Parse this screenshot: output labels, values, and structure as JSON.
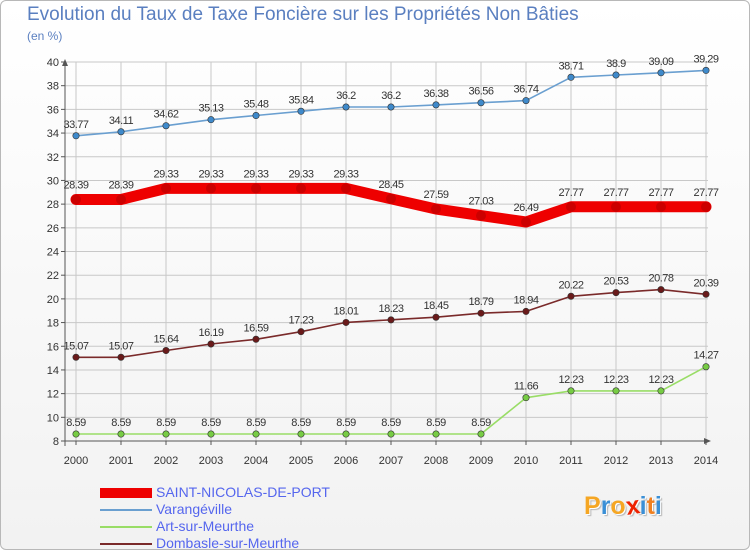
{
  "header": {
    "title": "Evolution du Taux de Taxe Foncière sur les Propriétés Non Bâties",
    "subtitle": "(en %)"
  },
  "logo": {
    "text": "Proxiti",
    "letters": [
      "P",
      "r",
      "o",
      "x",
      "i",
      "t",
      "i"
    ]
  },
  "colors": {
    "axis": "#555555",
    "grid": "#c8c8c8",
    "tick_text": "#333333",
    "label_text": "#333333"
  },
  "chart_data": {
    "type": "line",
    "title": "Evolution du Taux de Taxe Foncière sur les Propriétés Non Bâties",
    "ylabel": "(en %)",
    "xlabel": "",
    "x": [
      "2000",
      "2001",
      "2002",
      "2003",
      "2004",
      "2005",
      "2006",
      "2007",
      "2008",
      "2009",
      "2010",
      "2011",
      "2012",
      "2013",
      "2014"
    ],
    "ylim": [
      8,
      40
    ],
    "yticks": [
      8,
      10,
      12,
      14,
      16,
      18,
      20,
      22,
      24,
      26,
      28,
      30,
      32,
      34,
      36,
      38,
      40
    ],
    "grid": true,
    "legend_position": "bottom-left",
    "series": [
      {
        "name": "SAINT-NICOLAS-DE-PORT",
        "color": "#ee0000",
        "marker": "#ee0000",
        "thick": true,
        "values": [
          28.39,
          28.39,
          29.33,
          29.33,
          29.33,
          29.33,
          29.33,
          28.45,
          27.59,
          27.03,
          26.49,
          27.77,
          27.77,
          27.77,
          27.77
        ],
        "labels": [
          "28.39",
          "28.39",
          "29.33",
          "29.33",
          "29.33",
          "29.33",
          "29.33",
          "28.45",
          "27.59",
          "27.03",
          "26.49",
          "27.77",
          "27.77",
          "27.77",
          "27.77"
        ]
      },
      {
        "name": "Varangéville",
        "color": "#6a9fd0",
        "marker": "#3f8acb",
        "thick": false,
        "values": [
          33.77,
          34.11,
          34.62,
          35.13,
          35.48,
          35.84,
          36.2,
          36.2,
          36.38,
          36.56,
          36.74,
          38.71,
          38.9,
          39.09,
          39.29
        ],
        "labels": [
          "33.77",
          "34.11",
          "34.62",
          "35.13",
          "35.48",
          "35.84",
          "36.2",
          "36.2",
          "36.38",
          "36.56",
          "36.74",
          "38.71",
          "38.9",
          "39.09",
          "39.29"
        ]
      },
      {
        "name": "Art-sur-Meurthe",
        "color": "#99dd66",
        "marker": "#77cc44",
        "thick": false,
        "values": [
          8.59,
          8.59,
          8.59,
          8.59,
          8.59,
          8.59,
          8.59,
          8.59,
          8.59,
          8.59,
          11.66,
          12.23,
          12.23,
          12.23,
          14.27
        ],
        "labels": [
          "8.59",
          "8.59",
          "8.59",
          "8.59",
          "8.59",
          "8.59",
          "8.59",
          "8.59",
          "8.59",
          "8.59",
          "11.66",
          "12.23",
          "12.23",
          "12.23",
          "14.27"
        ]
      },
      {
        "name": "Dombasle-sur-Meurthe",
        "color": "#7a2a2a",
        "marker": "#6a1a1a",
        "thick": false,
        "values": [
          15.07,
          15.07,
          15.64,
          16.19,
          16.59,
          17.23,
          18.01,
          18.23,
          18.45,
          18.79,
          18.94,
          20.22,
          20.53,
          20.78,
          20.39
        ],
        "labels": [
          "15.07",
          "15.07",
          "15.64",
          "16.19",
          "16.59",
          "17.23",
          "18.01",
          "18.23",
          "18.45",
          "18.79",
          "18.94",
          "20.22",
          "20.53",
          "20.78",
          "20.39"
        ]
      }
    ]
  }
}
